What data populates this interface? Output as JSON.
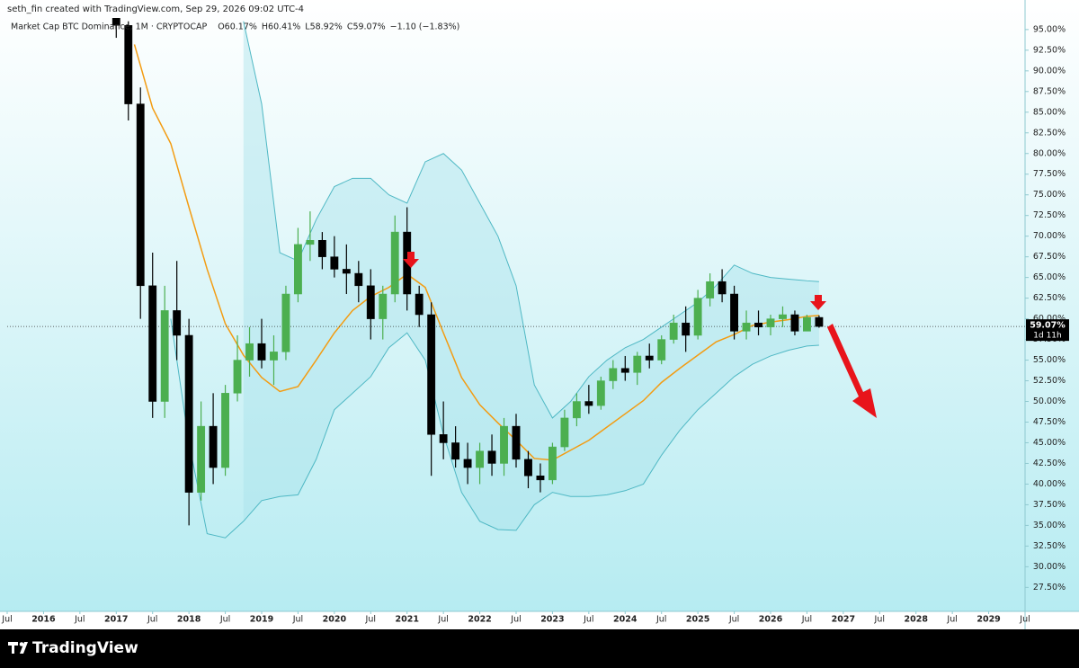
{
  "attribution": "seth_fin created with TradingView.com, Sep 29, 2026 09:02 UTC-4",
  "footer": {
    "brand": "TradingView"
  },
  "chart_data": {
    "type": "candlestick",
    "symbol": "Market Cap BTC Dominance, 1M · CRYPTOCAP",
    "ohlc_legend": {
      "open": "O60.17%",
      "high": "H60.41%",
      "low": "L58.92%",
      "close": "C59.07%",
      "change": "−1.10 (−1.83%)"
    },
    "price_label": "59.07%",
    "countdown": "1d 11h",
    "up_color": "#4caf50",
    "down_color": "#000000",
    "x": [
      "2017-01",
      "2017-03",
      "2017-05",
      "2017-07",
      "2017-09",
      "2017-11",
      "2018-01",
      "2018-03",
      "2018-05",
      "2018-07",
      "2018-09",
      "2018-11",
      "2019-01",
      "2019-03",
      "2019-05",
      "2019-07",
      "2019-09",
      "2019-11",
      "2020-01",
      "2020-03",
      "2020-05",
      "2020-07",
      "2020-09",
      "2020-11",
      "2021-01",
      "2021-03",
      "2021-05",
      "2021-07",
      "2021-09",
      "2021-11",
      "2022-01",
      "2022-03",
      "2022-05",
      "2022-07",
      "2022-09",
      "2022-11",
      "2023-01",
      "2023-03",
      "2023-05",
      "2023-07",
      "2023-09",
      "2023-11",
      "2024-01",
      "2024-03",
      "2024-05",
      "2024-07",
      "2024-09",
      "2024-11",
      "2025-01",
      "2025-03",
      "2025-05",
      "2025-07",
      "2025-09",
      "2025-11",
      "2026-01",
      "2026-03",
      "2026-05",
      "2026-07",
      "2026-09"
    ],
    "open": [
      96.5,
      95.5,
      86,
      64,
      50,
      61,
      58,
      39,
      47,
      42,
      51,
      55,
      57,
      55,
      56,
      63,
      69,
      69.5,
      67.5,
      66,
      65.5,
      64,
      60,
      63,
      70.5,
      63,
      60.5,
      46,
      45,
      43,
      42,
      44,
      42.5,
      47,
      43,
      41,
      40.5,
      44.5,
      48,
      50,
      49.5,
      52.5,
      54,
      53.5,
      55.5,
      55,
      57.5,
      59.5,
      58,
      62.5,
      64.5,
      63,
      58.5,
      59.5,
      59,
      60,
      60.5,
      58.5,
      60.17
    ],
    "high": [
      97.5,
      96,
      88,
      68,
      64,
      67,
      60,
      50,
      51,
      52,
      58,
      59,
      60,
      58,
      64,
      71,
      73,
      70.5,
      70,
      69,
      67,
      66,
      64,
      72.5,
      73.5,
      64,
      62,
      50,
      47,
      45,
      45,
      46,
      48,
      48.5,
      44,
      42.5,
      45,
      49,
      51,
      52,
      53,
      55,
      55.5,
      56,
      57,
      58,
      60.5,
      61.5,
      63.5,
      65.5,
      66,
      64,
      61,
      61,
      60.5,
      61.5,
      61,
      60.5,
      60.41
    ],
    "low": [
      94,
      84,
      60,
      48,
      48,
      55,
      35,
      38,
      40,
      41,
      50,
      53,
      54,
      52,
      55,
      62,
      67,
      66,
      65,
      63,
      62,
      57.5,
      57.5,
      62,
      61,
      59,
      41,
      43,
      42,
      40,
      40,
      41,
      41,
      42,
      39.5,
      39,
      40,
      44,
      47,
      48.5,
      49,
      51.5,
      52.5,
      52,
      54,
      54.5,
      57,
      56,
      57.5,
      61.5,
      62,
      57.5,
      57.5,
      58,
      58,
      59,
      58,
      58.5,
      58.92
    ],
    "close": [
      95.5,
      86,
      64,
      50,
      61,
      58,
      39,
      47,
      42,
      51,
      55,
      57,
      55,
      56,
      63,
      69,
      69.5,
      67.5,
      66,
      65.5,
      64,
      60,
      63,
      70.5,
      63,
      60.5,
      46,
      45,
      43,
      42,
      44,
      42.5,
      47,
      43,
      41,
      40.5,
      44.5,
      48,
      50,
      49.5,
      52.5,
      54,
      53.5,
      55.5,
      55,
      57.5,
      59.5,
      58,
      62.5,
      64.5,
      63,
      58.5,
      59.5,
      59,
      60,
      60.5,
      58.5,
      60.17,
      59.07
    ],
    "overlays": {
      "band_fill": "#a8e3ea",
      "x": [
        "2017-04",
        "2017-07",
        "2017-10",
        "2018-01",
        "2018-04",
        "2018-07",
        "2018-10",
        "2019-01",
        "2019-04",
        "2019-07",
        "2019-10",
        "2020-01",
        "2020-04",
        "2020-07",
        "2020-10",
        "2021-01",
        "2021-04",
        "2021-07",
        "2021-10",
        "2022-01",
        "2022-04",
        "2022-07",
        "2022-10",
        "2023-01",
        "2023-04",
        "2023-07",
        "2023-10",
        "2024-01",
        "2024-04",
        "2024-07",
        "2024-10",
        "2025-01",
        "2025-04",
        "2025-07",
        "2025-10",
        "2026-01",
        "2026-04",
        "2026-07",
        "2026-09"
      ],
      "series": [
        {
          "color": "#f39c12",
          "values": [
            93.2,
            85.5,
            81.2,
            73.5,
            66,
            59.4,
            55.6,
            52.9,
            51.2,
            51.8,
            55,
            58.3,
            61,
            62.7,
            63.8,
            65.4,
            63.8,
            58.3,
            52.9,
            49.6,
            47.4,
            45.3,
            43.1,
            42.9,
            44.1,
            45.3,
            46.9,
            48.5,
            50.1,
            52.3,
            54,
            55.6,
            57.2,
            58.1,
            59.2,
            59.6,
            59.9,
            60.3,
            60.4
          ]
        },
        {
          "color": "#4fb8c4",
          "values": [
            null,
            null,
            null,
            null,
            null,
            null,
            96,
            86,
            68,
            67,
            72,
            76,
            77,
            77,
            75,
            74,
            79,
            80,
            78,
            74,
            70,
            64,
            52,
            48,
            50,
            53,
            55,
            56.5,
            57.5,
            59,
            60.5,
            62,
            64,
            66.5,
            65.5,
            65,
            64.8,
            64.6,
            64.5
          ]
        },
        {
          "color": "#4fb8c4",
          "values": [
            null,
            null,
            60,
            45,
            34,
            33.5,
            35.5,
            38,
            38.5,
            38.7,
            43,
            49,
            51,
            53,
            56.5,
            58.3,
            55,
            46,
            39,
            35.5,
            34.5,
            34.4,
            37.5,
            39,
            38.5,
            38.5,
            38.7,
            39.2,
            40,
            43.5,
            46.5,
            49,
            51,
            53,
            54.5,
            55.5,
            56.2,
            56.7,
            56.8
          ]
        }
      ]
    },
    "xlim": [
      "2015-07",
      "2029-07"
    ],
    "xticks": [
      {
        "value": "2015-07",
        "label": "Jul"
      },
      {
        "value": "2016-01",
        "label": "2016"
      },
      {
        "value": "2016-07",
        "label": "Jul"
      },
      {
        "value": "2017-01",
        "label": "2017"
      },
      {
        "value": "2017-07",
        "label": "Jul"
      },
      {
        "value": "2018-01",
        "label": "2018"
      },
      {
        "value": "2018-07",
        "label": "Jul"
      },
      {
        "value": "2019-01",
        "label": "2019"
      },
      {
        "value": "2019-07",
        "label": "Jul"
      },
      {
        "value": "2020-01",
        "label": "2020"
      },
      {
        "value": "2020-07",
        "label": "Jul"
      },
      {
        "value": "2021-01",
        "label": "2021"
      },
      {
        "value": "2021-07",
        "label": "Jul"
      },
      {
        "value": "2022-01",
        "label": "2022"
      },
      {
        "value": "2022-07",
        "label": "Jul"
      },
      {
        "value": "2023-01",
        "label": "2023"
      },
      {
        "value": "2023-07",
        "label": "Jul"
      },
      {
        "value": "2024-01",
        "label": "2024"
      },
      {
        "value": "2024-07",
        "label": "Jul"
      },
      {
        "value": "2025-01",
        "label": "2025"
      },
      {
        "value": "2025-07",
        "label": "Jul"
      },
      {
        "value": "2026-01",
        "label": "2026"
      },
      {
        "value": "2026-07",
        "label": "Jul"
      },
      {
        "value": "2027-01",
        "label": "2027"
      },
      {
        "value": "2027-07",
        "label": "Jul"
      },
      {
        "value": "2028-01",
        "label": "2028"
      },
      {
        "value": "2028-07",
        "label": "Jul"
      },
      {
        "value": "2029-01",
        "label": "2029"
      },
      {
        "value": "2029-07",
        "label": "Jul"
      }
    ],
    "ylim": [
      24.6,
      96.4
    ],
    "yticks": [
      {
        "value": 27.5,
        "label": "27.50%"
      },
      {
        "value": 30,
        "label": "30.00%"
      },
      {
        "value": 32.5,
        "label": "32.50%"
      },
      {
        "value": 35,
        "label": "35.00%"
      },
      {
        "value": 37.5,
        "label": "37.50%"
      },
      {
        "value": 40,
        "label": "40.00%"
      },
      {
        "value": 42.5,
        "label": "42.50%"
      },
      {
        "value": 45,
        "label": "45.00%"
      },
      {
        "value": 47.5,
        "label": "47.50%"
      },
      {
        "value": 50,
        "label": "50.00%"
      },
      {
        "value": 52.5,
        "label": "52.50%"
      },
      {
        "value": 55,
        "label": "55.00%"
      },
      {
        "value": 57.5,
        "label": "57.50%"
      },
      {
        "value": 60,
        "label": "60.00%"
      },
      {
        "value": 62.5,
        "label": "62.50%"
      },
      {
        "value": 65,
        "label": "65.00%"
      },
      {
        "value": 67.5,
        "label": "67.50%"
      },
      {
        "value": 70,
        "label": "70.00%"
      },
      {
        "value": 72.5,
        "label": "72.50%"
      },
      {
        "value": 75,
        "label": "75.00%"
      },
      {
        "value": 77.5,
        "label": "77.50%"
      },
      {
        "value": 80,
        "label": "80.00%"
      },
      {
        "value": 82.5,
        "label": "82.50%"
      },
      {
        "value": 85,
        "label": "85.00%"
      },
      {
        "value": 87.5,
        "label": "87.50%"
      },
      {
        "value": 90,
        "label": "90.00%"
      },
      {
        "value": 92.5,
        "label": "92.50%"
      },
      {
        "value": 95,
        "label": "95.00%"
      }
    ]
  }
}
